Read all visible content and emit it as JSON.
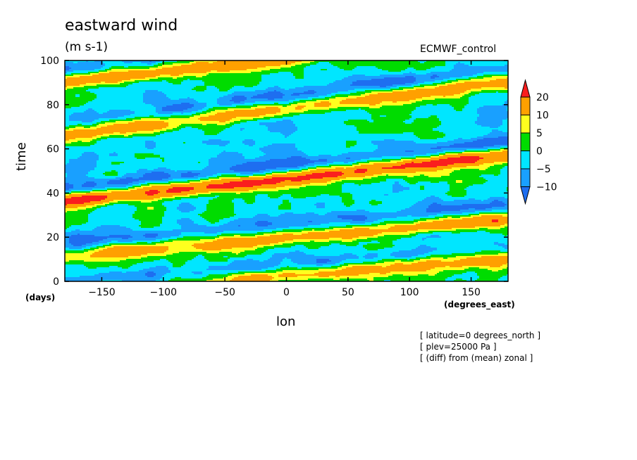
{
  "chart_data": {
    "type": "heatmap",
    "title": "eastward wind",
    "units": "(m s-1)",
    "run_label": "ECMWF_control",
    "xlabel": "lon",
    "xunit": "(degrees_east)",
    "ylabel": "time",
    "yunit": "(days)",
    "xlim": [
      -180,
      180
    ],
    "ylim": [
      0,
      100
    ],
    "xticks": [
      -150,
      -100,
      -50,
      0,
      50,
      100,
      150
    ],
    "yticks": [
      0,
      20,
      40,
      60,
      80,
      100
    ],
    "colorbar": {
      "levels": [
        -10,
        -5,
        0,
        5,
        10,
        20
      ],
      "colors": [
        "#1e6ef0",
        "#19a0ff",
        "#00e6ff",
        "#00dc00",
        "#ffff1e",
        "#ffa000",
        "#fa1e1e"
      ],
      "extend": "both"
    },
    "notes": [
      "[ latitude=0 degrees_north ]",
      "[ plev=25000 Pa ]",
      "[ (diff) from (mean) zonal ]"
    ],
    "eastward_bands": [
      {
        "lon_start": -180,
        "time_start": 36,
        "lon_end": 180,
        "time_end": 57,
        "amplitude": 22
      },
      {
        "lon_start": -180,
        "time_start": 11,
        "lon_end": 180,
        "time_end": 28,
        "amplitude": 14
      },
      {
        "lon_start": -180,
        "time_start": 66,
        "lon_end": 180,
        "time_end": 90,
        "amplitude": 15
      },
      {
        "lon_start": -180,
        "time_start": 90,
        "lon_end": 180,
        "time_end": 112,
        "amplitude": 17
      },
      {
        "lon_start": -180,
        "time_start": -6,
        "lon_end": 180,
        "time_end": 10,
        "amplitude": 13
      }
    ]
  }
}
